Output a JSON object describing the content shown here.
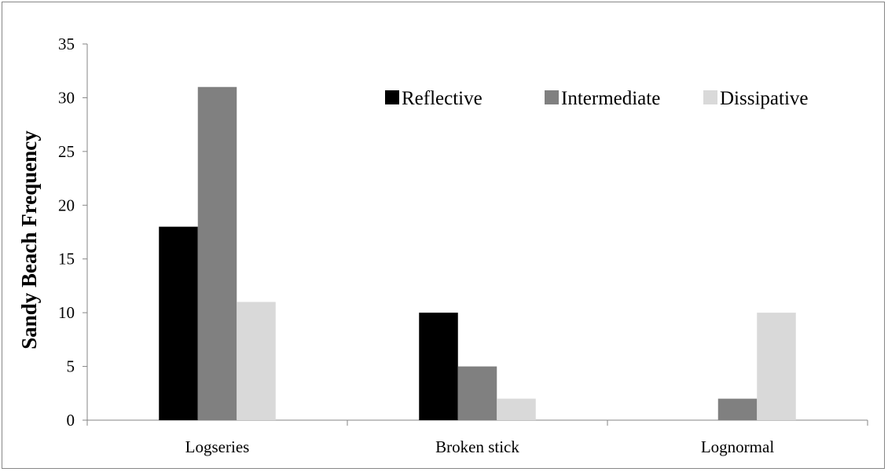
{
  "chart_data": {
    "type": "bar",
    "categories": [
      "Logseries",
      "Broken stick",
      "Lognormal"
    ],
    "series": [
      {
        "name": "Reflective",
        "values": [
          18,
          10,
          0
        ],
        "color": "#000000"
      },
      {
        "name": "Intermediate",
        "values": [
          31,
          5,
          2
        ],
        "color": "#808080"
      },
      {
        "name": "Dissipative",
        "values": [
          11,
          2,
          10
        ],
        "color": "#d9d9d9"
      }
    ],
    "title": "",
    "xlabel": "",
    "ylabel": "Sandy Beach Frequency",
    "ylim": [
      0,
      35
    ],
    "yticks": [
      0,
      5,
      10,
      15,
      20,
      25,
      30,
      35
    ],
    "grid": false,
    "legend_position": "top-right"
  }
}
